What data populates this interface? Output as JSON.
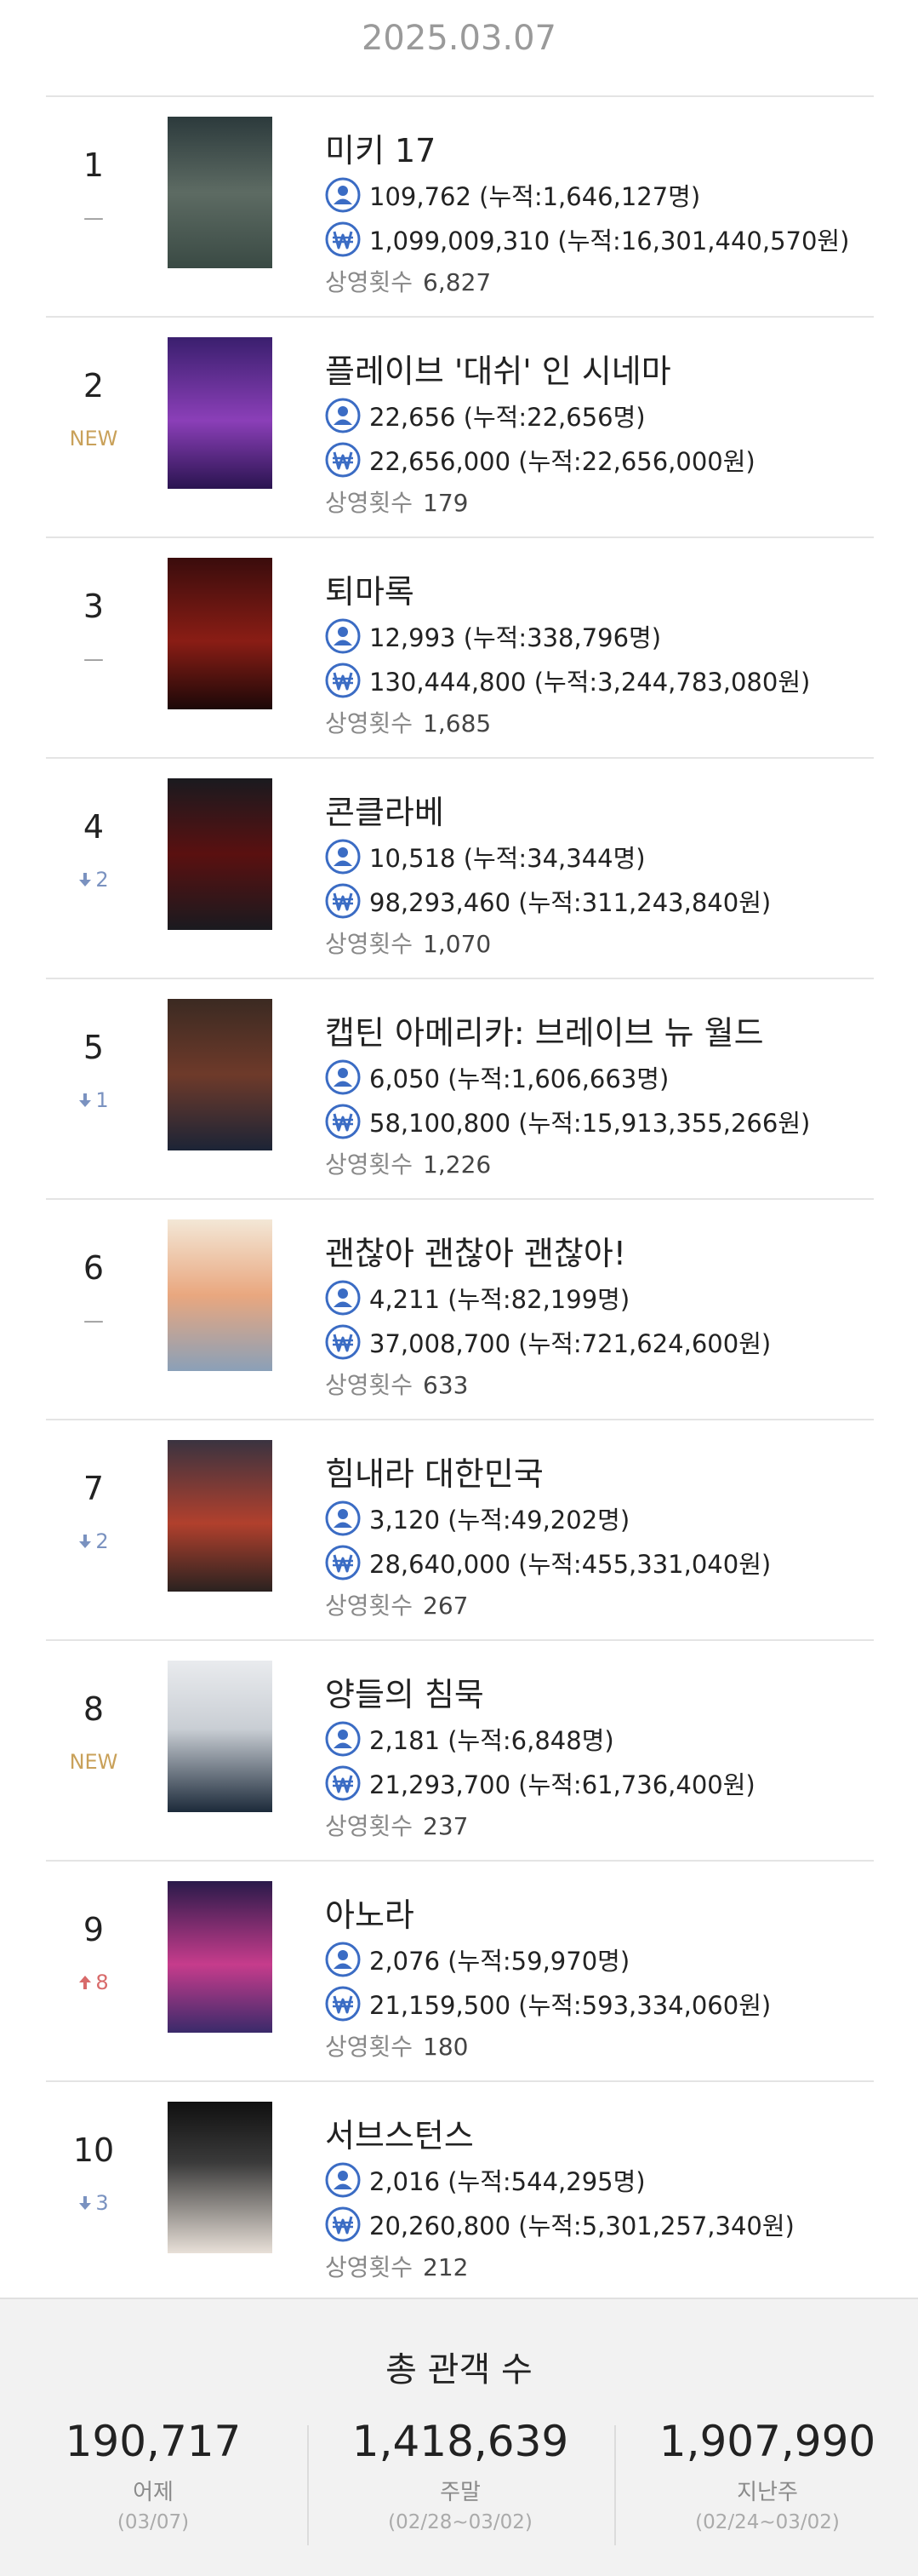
{
  "date": "2025.03.07",
  "screen_label": "상영횟수",
  "movies": [
    {
      "rank": 1,
      "change": "—",
      "trend": "same",
      "title": "미키 17",
      "audience": "109,762 (누적:1,646,127명)",
      "sales": "1,099,009,310 (누적:16,301,440,570원)",
      "screenings": "6,827"
    },
    {
      "rank": 2,
      "change": "NEW",
      "trend": "new",
      "title": "플레이브 '대쉬' 인 시네마",
      "audience": "22,656 (누적:22,656명)",
      "sales": "22,656,000 (누적:22,656,000원)",
      "screenings": "179"
    },
    {
      "rank": 3,
      "change": "—",
      "trend": "same",
      "title": "퇴마록",
      "audience": "12,993 (누적:338,796명)",
      "sales": "130,444,800 (누적:3,244,783,080원)",
      "screenings": "1,685"
    },
    {
      "rank": 4,
      "change": "2",
      "trend": "down",
      "title": "콘클라베",
      "audience": "10,518 (누적:34,344명)",
      "sales": "98,293,460 (누적:311,243,840원)",
      "screenings": "1,070"
    },
    {
      "rank": 5,
      "change": "1",
      "trend": "down",
      "title": "캡틴 아메리카: 브레이브 뉴 월드",
      "audience": "6,050 (누적:1,606,663명)",
      "sales": "58,100,800 (누적:15,913,355,266원)",
      "screenings": "1,226"
    },
    {
      "rank": 6,
      "change": "—",
      "trend": "same",
      "title": "괜찮아 괜찮아 괜찮아!",
      "audience": "4,211 (누적:82,199명)",
      "sales": "37,008,700 (누적:721,624,600원)",
      "screenings": "633"
    },
    {
      "rank": 7,
      "change": "2",
      "trend": "down",
      "title": "힘내라 대한민국",
      "audience": "3,120 (누적:49,202명)",
      "sales": "28,640,000 (누적:455,331,040원)",
      "screenings": "267"
    },
    {
      "rank": 8,
      "change": "NEW",
      "trend": "new",
      "title": "양들의 침묵",
      "audience": "2,181 (누적:6,848명)",
      "sales": "21,293,700 (누적:61,736,400원)",
      "screenings": "237"
    },
    {
      "rank": 9,
      "change": "8",
      "trend": "up",
      "title": "아노라",
      "audience": "2,076 (누적:59,970명)",
      "sales": "21,159,500 (누적:593,334,060원)",
      "screenings": "180"
    },
    {
      "rank": 10,
      "change": "3",
      "trend": "down",
      "title": "서브스턴스",
      "audience": "2,016 (누적:544,295명)",
      "sales": "20,260,800 (누적:5,301,257,340원)",
      "screenings": "212"
    }
  ],
  "summary": {
    "title": "총 관객 수",
    "items": [
      {
        "value": "190,717",
        "label": "어제",
        "period": "(03/07)"
      },
      {
        "value": "1,418,639",
        "label": "주말",
        "period": "(02/28~03/02)"
      },
      {
        "value": "1,907,990",
        "label": "지난주",
        "period": "(02/24~03/02)"
      }
    ]
  }
}
